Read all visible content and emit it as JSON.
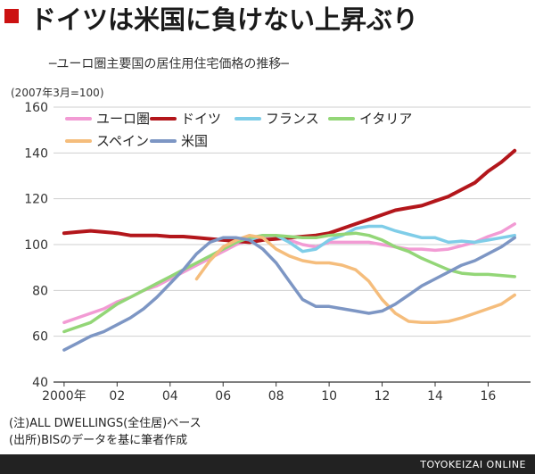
{
  "title": "ドイツは米国に負けない上昇ぶり",
  "subtitle": "─ユーロ圏主要国の居住用住宅価格の推移─",
  "unit_label": "(2007年3月=100)",
  "notes": [
    "(注)ALL DWELLINGS(全住居)ベース",
    "(出所)BISのデータを基に筆者作成"
  ],
  "footer": "TOYOKEIZAI ONLINE",
  "colors": {
    "accent": "#cc1111",
    "footer_bg": "#222222"
  },
  "chart_data": {
    "type": "line",
    "title": "ドイツは米国に負けない上昇ぶり",
    "xlabel": "",
    "ylabel": "",
    "ylim": [
      40,
      160
    ],
    "xlim": [
      1999.6,
      2017.6
    ],
    "yticks": [
      40,
      60,
      80,
      100,
      120,
      140,
      160
    ],
    "xticks": [
      {
        "x": 2000,
        "label": "2000年"
      },
      {
        "x": 2002,
        "label": "02"
      },
      {
        "x": 2004,
        "label": "04"
      },
      {
        "x": 2006,
        "label": "06"
      },
      {
        "x": 2008,
        "label": "08"
      },
      {
        "x": 2010,
        "label": "10"
      },
      {
        "x": 2012,
        "label": "12"
      },
      {
        "x": 2014,
        "label": "14"
      },
      {
        "x": 2016,
        "label": "16"
      }
    ],
    "grid": true,
    "legend": "top-left",
    "series": [
      {
        "name": "ユーロ圏",
        "color": "#f29bd4",
        "points": [
          [
            2000,
            66
          ],
          [
            2000.5,
            68
          ],
          [
            2001,
            70
          ],
          [
            2001.5,
            72
          ],
          [
            2002,
            75
          ],
          [
            2002.5,
            77
          ],
          [
            2003,
            80
          ],
          [
            2003.5,
            82
          ],
          [
            2004,
            85
          ],
          [
            2004.5,
            88
          ],
          [
            2005,
            91
          ],
          [
            2005.5,
            94
          ],
          [
            2006,
            97
          ],
          [
            2006.5,
            100
          ],
          [
            2007,
            102
          ],
          [
            2007.5,
            103
          ],
          [
            2008,
            103
          ],
          [
            2008.5,
            102
          ],
          [
            2009,
            100
          ],
          [
            2009.5,
            99
          ],
          [
            2010,
            101
          ],
          [
            2010.5,
            101
          ],
          [
            2011,
            101
          ],
          [
            2011.5,
            101
          ],
          [
            2012,
            100
          ],
          [
            2012.5,
            99
          ],
          [
            2013,
            98
          ],
          [
            2013.5,
            98
          ],
          [
            2014,
            97.5
          ],
          [
            2014.5,
            98
          ],
          [
            2015,
            99.5
          ],
          [
            2015.5,
            101
          ],
          [
            2016,
            103.5
          ],
          [
            2016.5,
            105.5
          ],
          [
            2017,
            109
          ]
        ]
      },
      {
        "name": "ドイツ",
        "color": "#b3161b",
        "points": [
          [
            2000,
            105
          ],
          [
            2000.5,
            105.5
          ],
          [
            2001,
            106
          ],
          [
            2001.5,
            105.5
          ],
          [
            2002,
            105
          ],
          [
            2002.5,
            104
          ],
          [
            2003,
            104
          ],
          [
            2003.5,
            104
          ],
          [
            2004,
            103.5
          ],
          [
            2004.5,
            103.5
          ],
          [
            2005,
            103
          ],
          [
            2005.5,
            102.5
          ],
          [
            2006,
            102
          ],
          [
            2006.5,
            101.5
          ],
          [
            2007,
            101
          ],
          [
            2007.5,
            102
          ],
          [
            2008,
            102.5
          ],
          [
            2008.5,
            103
          ],
          [
            2009,
            103.5
          ],
          [
            2009.5,
            104
          ],
          [
            2010,
            105
          ],
          [
            2010.5,
            107
          ],
          [
            2011,
            109
          ],
          [
            2011.5,
            111
          ],
          [
            2012,
            113
          ],
          [
            2012.5,
            115
          ],
          [
            2013,
            116
          ],
          [
            2013.5,
            117
          ],
          [
            2014,
            119
          ],
          [
            2014.5,
            121
          ],
          [
            2015,
            124
          ],
          [
            2015.5,
            127
          ],
          [
            2016,
            132
          ],
          [
            2016.5,
            136
          ],
          [
            2017,
            141
          ]
        ]
      },
      {
        "name": "フランス",
        "color": "#7fcde8",
        "points": [
          [
            2007,
            102
          ],
          [
            2007.5,
            104
          ],
          [
            2008,
            104
          ],
          [
            2008.5,
            101
          ],
          [
            2009,
            97
          ],
          [
            2009.5,
            98
          ],
          [
            2010,
            102
          ],
          [
            2010.5,
            104
          ],
          [
            2011,
            107
          ],
          [
            2011.5,
            108
          ],
          [
            2012,
            108
          ],
          [
            2012.5,
            106
          ],
          [
            2013,
            104.5
          ],
          [
            2013.5,
            103
          ],
          [
            2014,
            103
          ],
          [
            2014.5,
            101
          ],
          [
            2015,
            101.5
          ],
          [
            2015.5,
            101
          ],
          [
            2016,
            102
          ],
          [
            2016.5,
            103
          ],
          [
            2017,
            104
          ]
        ]
      },
      {
        "name": "イタリア",
        "color": "#93d677",
        "points": [
          [
            2000,
            62
          ],
          [
            2000.5,
            64
          ],
          [
            2001,
            66
          ],
          [
            2001.5,
            70
          ],
          [
            2002,
            74
          ],
          [
            2002.5,
            77
          ],
          [
            2003,
            80
          ],
          [
            2003.5,
            83
          ],
          [
            2004,
            86
          ],
          [
            2004.5,
            89
          ],
          [
            2005,
            92
          ],
          [
            2005.5,
            95
          ],
          [
            2006,
            98
          ],
          [
            2006.5,
            101
          ],
          [
            2007,
            103
          ],
          [
            2007.5,
            104
          ],
          [
            2008,
            104
          ],
          [
            2008.5,
            103.5
          ],
          [
            2009,
            103
          ],
          [
            2009.5,
            103
          ],
          [
            2010,
            104
          ],
          [
            2010.5,
            104.5
          ],
          [
            2011,
            105
          ],
          [
            2011.5,
            104
          ],
          [
            2012,
            102
          ],
          [
            2012.5,
            99
          ],
          [
            2013,
            97
          ],
          [
            2013.5,
            94
          ],
          [
            2014,
            91.5
          ],
          [
            2014.5,
            89
          ],
          [
            2015,
            87.5
          ],
          [
            2015.5,
            87
          ],
          [
            2016,
            87
          ],
          [
            2016.5,
            86.5
          ],
          [
            2017,
            86
          ]
        ]
      },
      {
        "name": "スペイン",
        "color": "#f5bd7c",
        "points": [
          [
            2005,
            85
          ],
          [
            2005.5,
            93
          ],
          [
            2006,
            99
          ],
          [
            2006.5,
            102
          ],
          [
            2007,
            104
          ],
          [
            2007.5,
            103
          ],
          [
            2008,
            98
          ],
          [
            2008.5,
            95
          ],
          [
            2009,
            93
          ],
          [
            2009.5,
            92
          ],
          [
            2010,
            92
          ],
          [
            2010.5,
            91
          ],
          [
            2011,
            89
          ],
          [
            2011.5,
            84
          ],
          [
            2012,
            76
          ],
          [
            2012.5,
            70
          ],
          [
            2013,
            66.5
          ],
          [
            2013.5,
            66
          ],
          [
            2014,
            66
          ],
          [
            2014.5,
            66.5
          ],
          [
            2015,
            68
          ],
          [
            2015.5,
            70
          ],
          [
            2016,
            72
          ],
          [
            2016.5,
            74
          ],
          [
            2017,
            78
          ]
        ]
      },
      {
        "name": "米国",
        "color": "#7d96c4",
        "points": [
          [
            2000,
            54
          ],
          [
            2000.5,
            57
          ],
          [
            2001,
            60
          ],
          [
            2001.5,
            62
          ],
          [
            2002,
            65
          ],
          [
            2002.5,
            68
          ],
          [
            2003,
            72
          ],
          [
            2003.5,
            77
          ],
          [
            2004,
            83
          ],
          [
            2004.5,
            89
          ],
          [
            2005,
            96
          ],
          [
            2005.5,
            101
          ],
          [
            2006,
            103
          ],
          [
            2006.5,
            103
          ],
          [
            2007,
            102
          ],
          [
            2007.5,
            98
          ],
          [
            2008,
            92
          ],
          [
            2008.5,
            84
          ],
          [
            2009,
            76
          ],
          [
            2009.5,
            73
          ],
          [
            2010,
            73
          ],
          [
            2010.5,
            72
          ],
          [
            2011,
            71
          ],
          [
            2011.5,
            70
          ],
          [
            2012,
            71
          ],
          [
            2012.5,
            74
          ],
          [
            2013,
            78
          ],
          [
            2013.5,
            82
          ],
          [
            2014,
            85
          ],
          [
            2014.5,
            88
          ],
          [
            2015,
            91
          ],
          [
            2015.5,
            93
          ],
          [
            2016,
            96
          ],
          [
            2016.5,
            99
          ],
          [
            2017,
            103
          ]
        ]
      }
    ]
  }
}
